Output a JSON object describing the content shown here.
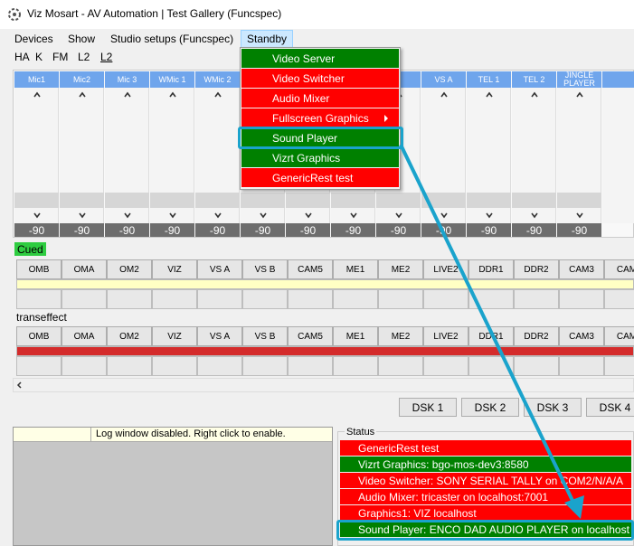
{
  "window": {
    "title": "Viz Mosart - AV Automation | Test Gallery (Funcspec)"
  },
  "menu": [
    "Devices",
    "Show",
    "Studio setups (Funcspec)",
    "Standby"
  ],
  "toolbar": [
    "HA",
    "K",
    "FM",
    "L2",
    "L2"
  ],
  "mixer": {
    "channels": [
      "Mic1",
      "Mic2",
      "Mic 3",
      "WMic 1",
      "WMic 2",
      null,
      null,
      null,
      "B",
      "VS A",
      "TEL 1",
      "TEL 2",
      "JINGLE PLAYER"
    ],
    "levels": [
      -90,
      -90,
      -90,
      -90,
      -90,
      -90,
      -90,
      -90,
      -90,
      -90,
      -90,
      -90,
      -90
    ]
  },
  "cued": {
    "label": "Cued",
    "sources": [
      "OMB",
      "OMA",
      "OM2",
      "VIZ",
      "VS A",
      "VS B",
      "CAM5",
      "ME1",
      "ME2",
      "LIVE2",
      "DDR1",
      "DDR2",
      "CAM3",
      "CAM"
    ]
  },
  "transeffect": {
    "label": "transeffect",
    "sources": [
      "OMB",
      "OMA",
      "OM2",
      "VIZ",
      "VS A",
      "VS B",
      "CAM5",
      "ME1",
      "ME2",
      "LIVE2",
      "DDR1",
      "DDR2",
      "CAM3",
      "CAM"
    ]
  },
  "dsk": [
    "DSK 1",
    "DSK 2",
    "DSK 3",
    "DSK 4"
  ],
  "log": {
    "message": "Log window disabled. Right click to enable."
  },
  "status": {
    "title": "Status",
    "items": [
      {
        "text": "GenericRest test",
        "color": "#ff0000"
      },
      {
        "text": "Vizrt Graphics: bgo-mos-dev3:8580",
        "color": "#008000"
      },
      {
        "text": "Video Switcher: SONY SERIAL TALLY on COM2/N/A/A",
        "color": "#ff0000"
      },
      {
        "text": "Audio Mixer: tricaster on localhost:7001",
        "color": "#ff0000"
      },
      {
        "text": "Graphics1: VIZ localhost",
        "color": "#ff0000"
      },
      {
        "text": "Sound Player: ENCO DAD AUDIO PLAYER on localhost",
        "color": "#008000"
      }
    ]
  },
  "standby_menu": {
    "items": [
      {
        "label": "Video Server",
        "color": "#008000"
      },
      {
        "label": "Video Switcher",
        "color": "#ff0000"
      },
      {
        "label": "Audio Mixer",
        "color": "#ff0000"
      },
      {
        "label": "Fullscreen Graphics",
        "color": "#ff0000"
      },
      {
        "label": "Sound Player",
        "color": "#008000"
      },
      {
        "label": "Vizrt Graphics",
        "color": "#008000"
      },
      {
        "label": "GenericRest test",
        "color": "#ff0000"
      }
    ]
  }
}
